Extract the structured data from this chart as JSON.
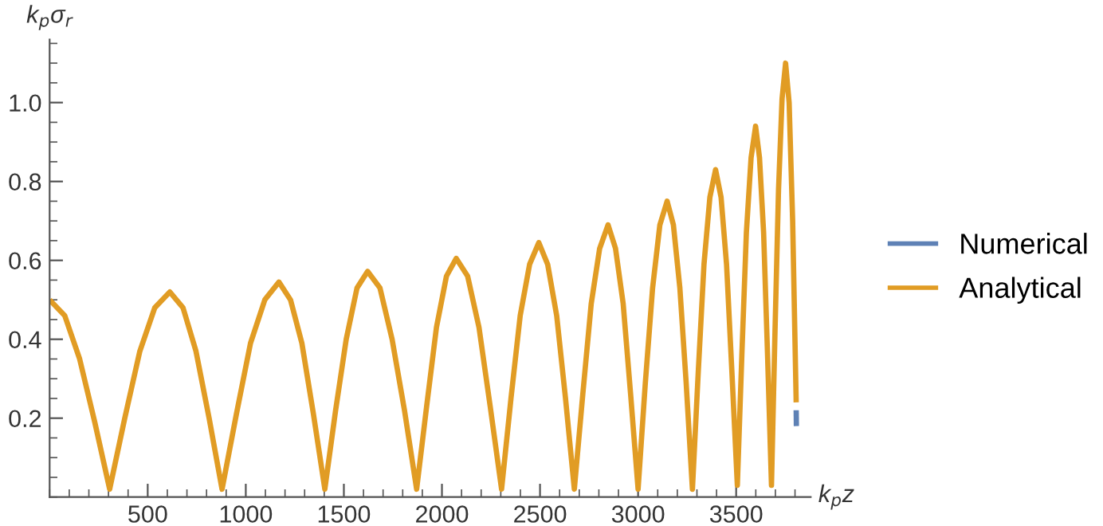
{
  "chart_data": {
    "type": "line",
    "xlabel": "k$_{p}$z",
    "ylabel": "k$_{p}$σ$_{r}$",
    "x": [
      0,
      77,
      153,
      230,
      306,
      383,
      460,
      536,
      613,
      680,
      746,
      813,
      879,
      952,
      1024,
      1097,
      1169,
      1228,
      1286,
      1345,
      1403,
      1458,
      1512,
      1567,
      1621,
      1684,
      1746,
      1809,
      1871,
      1922,
      1972,
      2023,
      2073,
      2131,
      2189,
      2246,
      2304,
      2352,
      2399,
      2447,
      2494,
      2539,
      2585,
      2630,
      2675,
      2718,
      2761,
      2804,
      2847,
      2885,
      2924,
      2962,
      3000,
      3037,
      3074,
      3111,
      3148,
      3180,
      3213,
      3245,
      3277,
      3307,
      3336,
      3366,
      3395,
      3423,
      3451,
      3478,
      3506,
      3529,
      3552,
      3576,
      3599,
      3619,
      3640,
      3660,
      3680,
      3698,
      3716,
      3734,
      3752,
      3770,
      3788,
      3806
    ],
    "series": [
      {
        "name": "Numerical",
        "color": "#5e81b5",
        "x": [
          3806,
          3807
        ],
        "values": [
          0.22,
          0.18
        ]
      },
      {
        "name": "Analytical",
        "color": "#e19c24",
        "values": [
          0.5,
          0.46,
          0.35,
          0.19,
          0.02,
          0.2,
          0.37,
          0.48,
          0.52,
          0.48,
          0.37,
          0.2,
          0.02,
          0.21,
          0.39,
          0.5,
          0.545,
          0.5,
          0.39,
          0.21,
          0.02,
          0.22,
          0.4,
          0.53,
          0.572,
          0.53,
          0.4,
          0.22,
          0.02,
          0.23,
          0.43,
          0.56,
          0.605,
          0.56,
          0.43,
          0.23,
          0.02,
          0.25,
          0.46,
          0.59,
          0.645,
          0.59,
          0.46,
          0.25,
          0.02,
          0.26,
          0.49,
          0.63,
          0.69,
          0.63,
          0.49,
          0.26,
          0.02,
          0.29,
          0.53,
          0.69,
          0.75,
          0.69,
          0.53,
          0.29,
          0.02,
          0.32,
          0.59,
          0.76,
          0.83,
          0.76,
          0.59,
          0.32,
          0.03,
          0.36,
          0.67,
          0.86,
          0.94,
          0.86,
          0.67,
          0.36,
          0.03,
          0.42,
          0.78,
          1.01,
          1.1,
          1.0,
          0.7,
          0.24
        ]
      }
    ],
    "xlim": [
      0,
      3880
    ],
    "ylim": [
      0,
      1.16
    ],
    "xticks": [
      500,
      1000,
      1500,
      2000,
      2500,
      3000,
      3500
    ],
    "yticks": [
      0.2,
      0.4,
      0.6,
      0.8,
      {
        "value": 1.0,
        "label": "1.0"
      }
    ],
    "legend": "right",
    "grid": false
  }
}
